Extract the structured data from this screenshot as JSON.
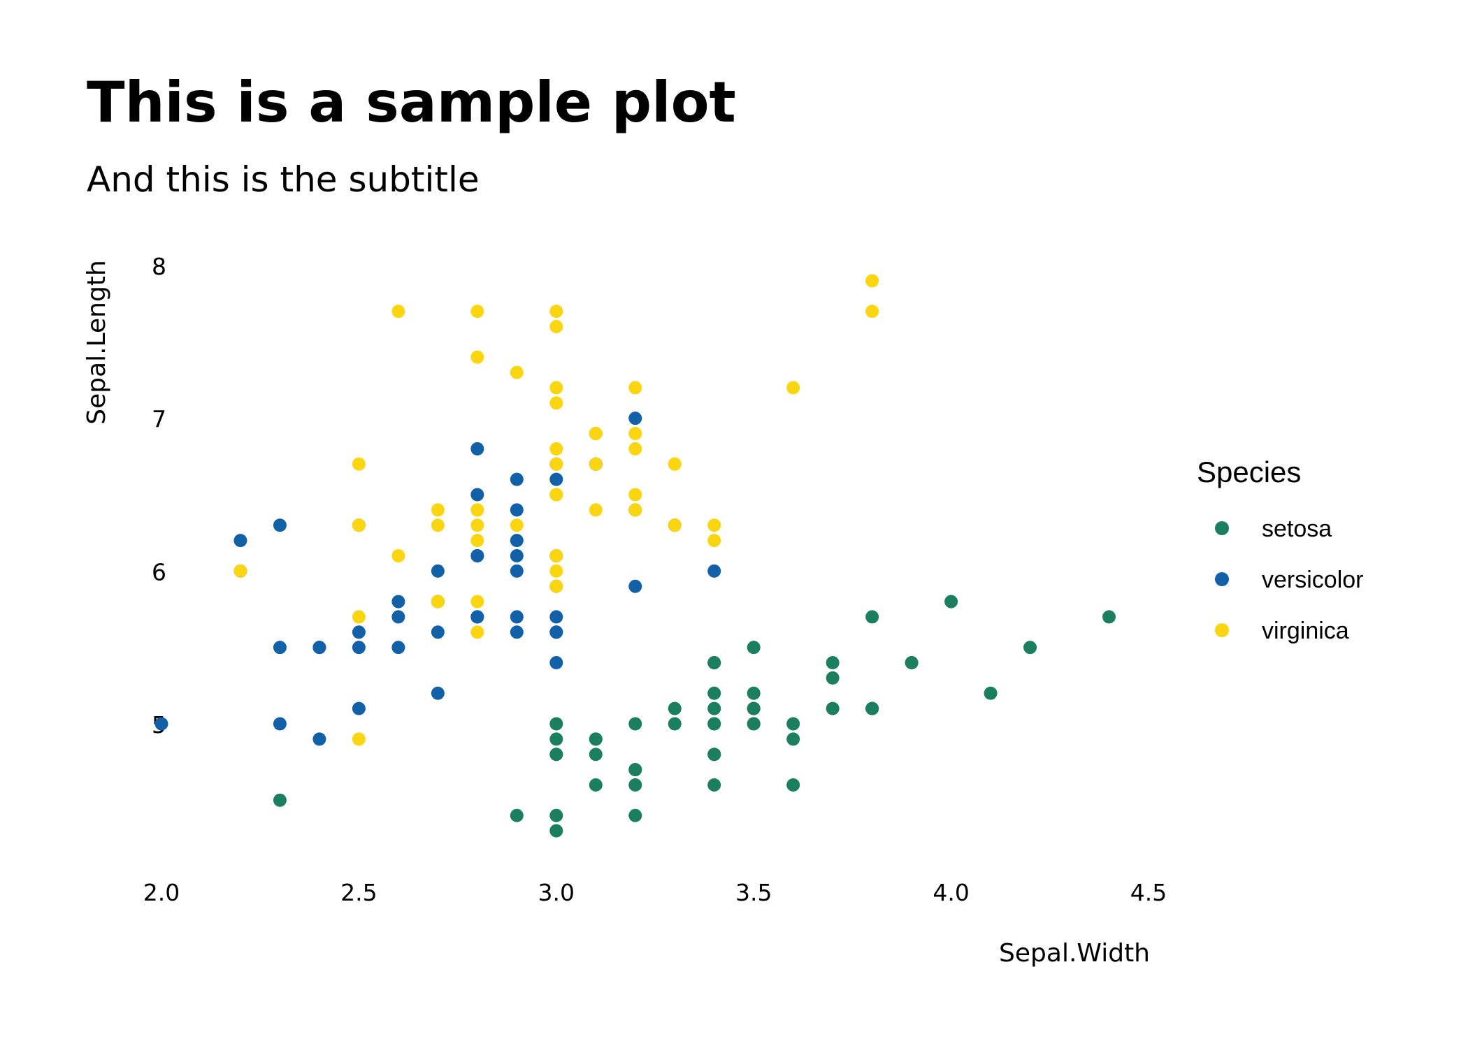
{
  "chart_data": {
    "type": "scatter",
    "title": "This is a sample plot",
    "subtitle": "And this is the subtitle",
    "xlabel": "Sepal.Width",
    "ylabel": "Sepal.Length",
    "xlim": [
      1.94,
      4.46
    ],
    "ylim": [
      4.19,
      8.1
    ],
    "x_ticks": [
      2.0,
      2.5,
      3.0,
      3.5,
      4.0,
      4.5
    ],
    "x_tick_labels": [
      "2.0",
      "2.5",
      "3.0",
      "3.5",
      "4.0",
      "4.5"
    ],
    "y_ticks": [
      5,
      6,
      7,
      8
    ],
    "y_tick_labels": [
      "5",
      "6",
      "7",
      "8"
    ],
    "grid": false,
    "legend": {
      "title": "Species",
      "position": "right",
      "entries": [
        "setosa",
        "versicolor",
        "virginica"
      ]
    },
    "series": [
      {
        "name": "setosa",
        "color": "#1b7f5f",
        "points": [
          [
            3.5,
            5.1
          ],
          [
            3.0,
            4.9
          ],
          [
            3.2,
            4.7
          ],
          [
            3.1,
            4.6
          ],
          [
            3.6,
            5.0
          ],
          [
            3.9,
            5.4
          ],
          [
            3.4,
            4.6
          ],
          [
            3.4,
            5.0
          ],
          [
            2.9,
            4.4
          ],
          [
            3.1,
            4.9
          ],
          [
            3.7,
            5.4
          ],
          [
            3.4,
            4.8
          ],
          [
            3.0,
            4.8
          ],
          [
            3.0,
            4.3
          ],
          [
            4.0,
            5.8
          ],
          [
            4.4,
            5.7
          ],
          [
            3.9,
            5.4
          ],
          [
            3.5,
            5.1
          ],
          [
            3.8,
            5.7
          ],
          [
            3.8,
            5.1
          ],
          [
            3.4,
            5.4
          ],
          [
            3.7,
            5.1
          ],
          [
            3.6,
            4.6
          ],
          [
            3.3,
            5.1
          ],
          [
            3.4,
            4.8
          ],
          [
            3.0,
            5.0
          ],
          [
            3.4,
            5.0
          ],
          [
            3.5,
            5.2
          ],
          [
            3.4,
            5.2
          ],
          [
            3.2,
            4.7
          ],
          [
            3.1,
            4.8
          ],
          [
            3.4,
            5.4
          ],
          [
            4.1,
            5.2
          ],
          [
            4.2,
            5.5
          ],
          [
            3.1,
            4.9
          ],
          [
            3.2,
            5.0
          ],
          [
            3.5,
            5.5
          ],
          [
            3.6,
            4.9
          ],
          [
            3.0,
            4.4
          ],
          [
            3.4,
            5.1
          ],
          [
            3.5,
            5.0
          ],
          [
            2.3,
            4.5
          ],
          [
            3.2,
            4.4
          ],
          [
            3.5,
            5.0
          ],
          [
            3.8,
            5.1
          ],
          [
            3.0,
            4.8
          ],
          [
            3.8,
            5.1
          ],
          [
            3.2,
            4.6
          ],
          [
            3.7,
            5.3
          ],
          [
            3.3,
            5.0
          ]
        ]
      },
      {
        "name": "versicolor",
        "color": "#1160a8",
        "points": [
          [
            3.2,
            7.0
          ],
          [
            3.2,
            6.4
          ],
          [
            3.1,
            6.9
          ],
          [
            2.3,
            5.5
          ],
          [
            2.8,
            6.5
          ],
          [
            2.8,
            5.7
          ],
          [
            3.3,
            6.3
          ],
          [
            2.4,
            4.9
          ],
          [
            2.9,
            6.6
          ],
          [
            2.7,
            5.2
          ],
          [
            2.0,
            5.0
          ],
          [
            3.0,
            5.9
          ],
          [
            2.2,
            6.0
          ],
          [
            2.9,
            6.1
          ],
          [
            2.9,
            5.6
          ],
          [
            3.1,
            6.7
          ],
          [
            3.0,
            5.6
          ],
          [
            2.7,
            5.8
          ],
          [
            2.2,
            6.2
          ],
          [
            2.5,
            5.6
          ],
          [
            3.2,
            5.9
          ],
          [
            2.8,
            6.1
          ],
          [
            2.5,
            6.3
          ],
          [
            2.8,
            6.1
          ],
          [
            2.9,
            6.4
          ],
          [
            3.0,
            6.6
          ],
          [
            2.8,
            6.8
          ],
          [
            3.0,
            6.7
          ],
          [
            2.9,
            6.0
          ],
          [
            2.6,
            5.7
          ],
          [
            2.4,
            5.5
          ],
          [
            2.4,
            5.5
          ],
          [
            2.7,
            5.8
          ],
          [
            2.7,
            6.0
          ],
          [
            3.0,
            5.4
          ],
          [
            3.4,
            6.0
          ],
          [
            3.1,
            6.7
          ],
          [
            2.3,
            6.3
          ],
          [
            3.0,
            5.6
          ],
          [
            2.5,
            5.5
          ],
          [
            2.6,
            5.5
          ],
          [
            3.0,
            6.1
          ],
          [
            2.6,
            5.8
          ],
          [
            2.3,
            5.0
          ],
          [
            2.7,
            5.6
          ],
          [
            3.0,
            5.7
          ],
          [
            2.9,
            5.7
          ],
          [
            2.9,
            6.2
          ],
          [
            2.5,
            5.1
          ],
          [
            2.8,
            5.7
          ]
        ]
      },
      {
        "name": "virginica",
        "color": "#fad510",
        "points": [
          [
            3.3,
            6.3
          ],
          [
            2.7,
            5.8
          ],
          [
            3.0,
            7.1
          ],
          [
            2.9,
            6.3
          ],
          [
            3.0,
            6.5
          ],
          [
            3.0,
            7.6
          ],
          [
            2.5,
            4.9
          ],
          [
            2.9,
            7.3
          ],
          [
            2.5,
            6.7
          ],
          [
            3.6,
            7.2
          ],
          [
            3.2,
            6.5
          ],
          [
            2.7,
            6.4
          ],
          [
            3.0,
            6.8
          ],
          [
            2.5,
            5.7
          ],
          [
            2.8,
            5.8
          ],
          [
            3.2,
            6.4
          ],
          [
            3.0,
            6.5
          ],
          [
            3.8,
            7.7
          ],
          [
            2.6,
            7.7
          ],
          [
            2.2,
            6.0
          ],
          [
            3.2,
            6.9
          ],
          [
            2.8,
            5.6
          ],
          [
            2.8,
            7.7
          ],
          [
            2.7,
            6.3
          ],
          [
            3.3,
            6.7
          ],
          [
            3.2,
            7.2
          ],
          [
            2.8,
            6.2
          ],
          [
            3.0,
            6.1
          ],
          [
            2.8,
            6.4
          ],
          [
            3.0,
            7.2
          ],
          [
            2.8,
            7.4
          ],
          [
            3.8,
            7.9
          ],
          [
            2.8,
            6.4
          ],
          [
            2.8,
            6.3
          ],
          [
            2.6,
            6.1
          ],
          [
            3.0,
            7.7
          ],
          [
            3.4,
            6.3
          ],
          [
            3.1,
            6.4
          ],
          [
            3.0,
            6.0
          ],
          [
            3.1,
            6.9
          ],
          [
            3.1,
            6.7
          ],
          [
            3.1,
            6.9
          ],
          [
            2.7,
            5.8
          ],
          [
            3.2,
            6.8
          ],
          [
            3.3,
            6.7
          ],
          [
            3.0,
            6.7
          ],
          [
            2.5,
            6.3
          ],
          [
            3.0,
            6.5
          ],
          [
            3.4,
            6.2
          ],
          [
            3.0,
            5.9
          ]
        ]
      }
    ]
  }
}
